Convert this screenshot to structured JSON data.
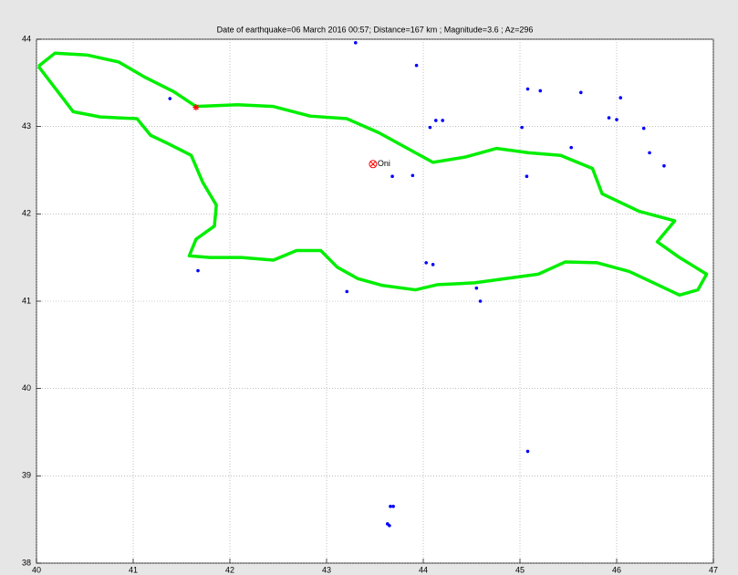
{
  "chart_data": {
    "type": "scatter",
    "title": "Date of earthquake=06 March 2016 00:57; Distance=167 km ; Magnitude=3.6 ; Az=296",
    "xlim": [
      40,
      47
    ],
    "ylim": [
      38,
      44
    ],
    "xticks": [
      40,
      41,
      42,
      43,
      44,
      45,
      46,
      47
    ],
    "yticks": [
      38,
      39,
      40,
      41,
      42,
      43,
      44
    ],
    "grid": true,
    "series": [
      {
        "kind": "line",
        "color": "#00ee00",
        "x": [
          40.02,
          40.19,
          40.52,
          40.85,
          41.13,
          41.42,
          41.65,
          42.08,
          42.45,
          42.83,
          43.21,
          43.54,
          43.82,
          44.1,
          44.43,
          44.76,
          45.09,
          45.42,
          45.75,
          45.85,
          46.23,
          46.6,
          46.42,
          46.65,
          46.93,
          46.84,
          46.65,
          46.42,
          46.13,
          45.8,
          45.47,
          45.19,
          44.86,
          44.53,
          44.15,
          43.92,
          43.58,
          43.32,
          43.11,
          42.94,
          42.69,
          42.45,
          42.12,
          41.79,
          41.58,
          41.65,
          41.84,
          41.86,
          41.72,
          41.6,
          41.37,
          41.18,
          41.04,
          40.66,
          40.38,
          40.02
        ],
        "y": [
          43.69,
          43.84,
          43.82,
          43.74,
          43.56,
          43.4,
          43.23,
          43.25,
          43.23,
          43.12,
          43.09,
          42.93,
          42.76,
          42.59,
          42.65,
          42.75,
          42.7,
          42.67,
          42.52,
          42.23,
          42.03,
          41.92,
          41.68,
          41.5,
          41.31,
          41.13,
          41.07,
          41.19,
          41.34,
          41.44,
          41.45,
          41.31,
          41.26,
          41.21,
          41.19,
          41.13,
          41.18,
          41.26,
          41.39,
          41.58,
          41.58,
          41.47,
          41.5,
          41.5,
          41.52,
          41.71,
          41.86,
          42.1,
          42.36,
          42.67,
          42.8,
          42.9,
          43.09,
          43.11,
          43.17,
          43.69
        ]
      },
      {
        "kind": "dot",
        "color": "#0000ff",
        "x": [
          41.38,
          43.3,
          43.93,
          45.08,
          45.21,
          45.63,
          46.04,
          45.92,
          46.0,
          46.28,
          45.02,
          44.07,
          44.13,
          44.2,
          45.53,
          46.34,
          46.49,
          43.68,
          43.89,
          45.07,
          41.67,
          43.21,
          44.03,
          44.1,
          44.55,
          44.59,
          45.08,
          43.66,
          43.69,
          43.63,
          43.65
        ],
        "y": [
          43.32,
          43.96,
          43.7,
          43.43,
          43.41,
          43.39,
          43.33,
          43.1,
          43.08,
          42.98,
          42.99,
          42.99,
          43.07,
          43.07,
          42.76,
          42.7,
          42.55,
          42.43,
          42.44,
          42.43,
          41.35,
          41.11,
          41.44,
          41.42,
          41.15,
          41.0,
          39.28,
          38.65,
          38.65,
          38.45,
          38.43
        ]
      },
      {
        "kind": "star",
        "color": "#ff0000",
        "x": [
          41.65
        ],
        "y": [
          43.22
        ]
      },
      {
        "kind": "circle",
        "color": "#ff0000",
        "label": "Oni",
        "x": [
          43.48
        ],
        "y": [
          42.57
        ]
      }
    ]
  }
}
